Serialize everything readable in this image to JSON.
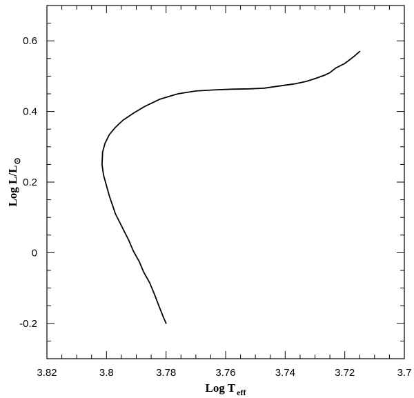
{
  "chart_data": {
    "type": "line",
    "x_axis": {
      "label_main": "Log T",
      "label_sub": "eff",
      "range": [
        3.82,
        3.7
      ],
      "reversed": true,
      "major_ticks": [
        3.82,
        3.8,
        3.78,
        3.76,
        3.74,
        3.72,
        3.7
      ],
      "tick_labels": [
        "3.82",
        "3.8",
        "3.78",
        "3.76",
        "3.74",
        "3.72",
        "3.7"
      ],
      "minor_step": 0.005
    },
    "y_axis": {
      "label_main": "Log L/L",
      "label_sub": "⊙",
      "range": [
        -0.3,
        0.7
      ],
      "major_ticks": [
        -0.2,
        0.0,
        0.2,
        0.4,
        0.6
      ],
      "tick_labels": [
        "-0.2",
        "0",
        "0.2",
        "0.4",
        "0.6"
      ],
      "minor_step": 0.05
    },
    "grid": false,
    "series": [
      {
        "color": "#000000",
        "x": [
          3.78,
          3.781,
          3.7822,
          3.7838,
          3.7855,
          3.7875,
          3.789,
          3.791,
          3.7925,
          3.794,
          3.7955,
          3.797,
          3.798,
          3.799,
          3.8,
          3.801,
          3.8015,
          3.8013,
          3.8005,
          3.799,
          3.797,
          3.7945,
          3.791,
          3.787,
          3.782,
          3.776,
          3.77,
          3.764,
          3.758,
          3.752,
          3.747,
          3.742,
          3.737,
          3.733,
          3.73,
          3.727,
          3.725,
          3.723,
          3.72,
          3.717,
          3.715
        ],
        "y": [
          -0.2,
          -0.18,
          -0.155,
          -0.12,
          -0.085,
          -0.055,
          -0.025,
          0.005,
          0.035,
          0.06,
          0.085,
          0.11,
          0.135,
          0.16,
          0.19,
          0.22,
          0.25,
          0.285,
          0.31,
          0.335,
          0.355,
          0.375,
          0.395,
          0.415,
          0.435,
          0.45,
          0.458,
          0.461,
          0.463,
          0.464,
          0.466,
          0.472,
          0.478,
          0.485,
          0.493,
          0.502,
          0.51,
          0.523,
          0.536,
          0.555,
          0.57
        ]
      }
    ]
  }
}
